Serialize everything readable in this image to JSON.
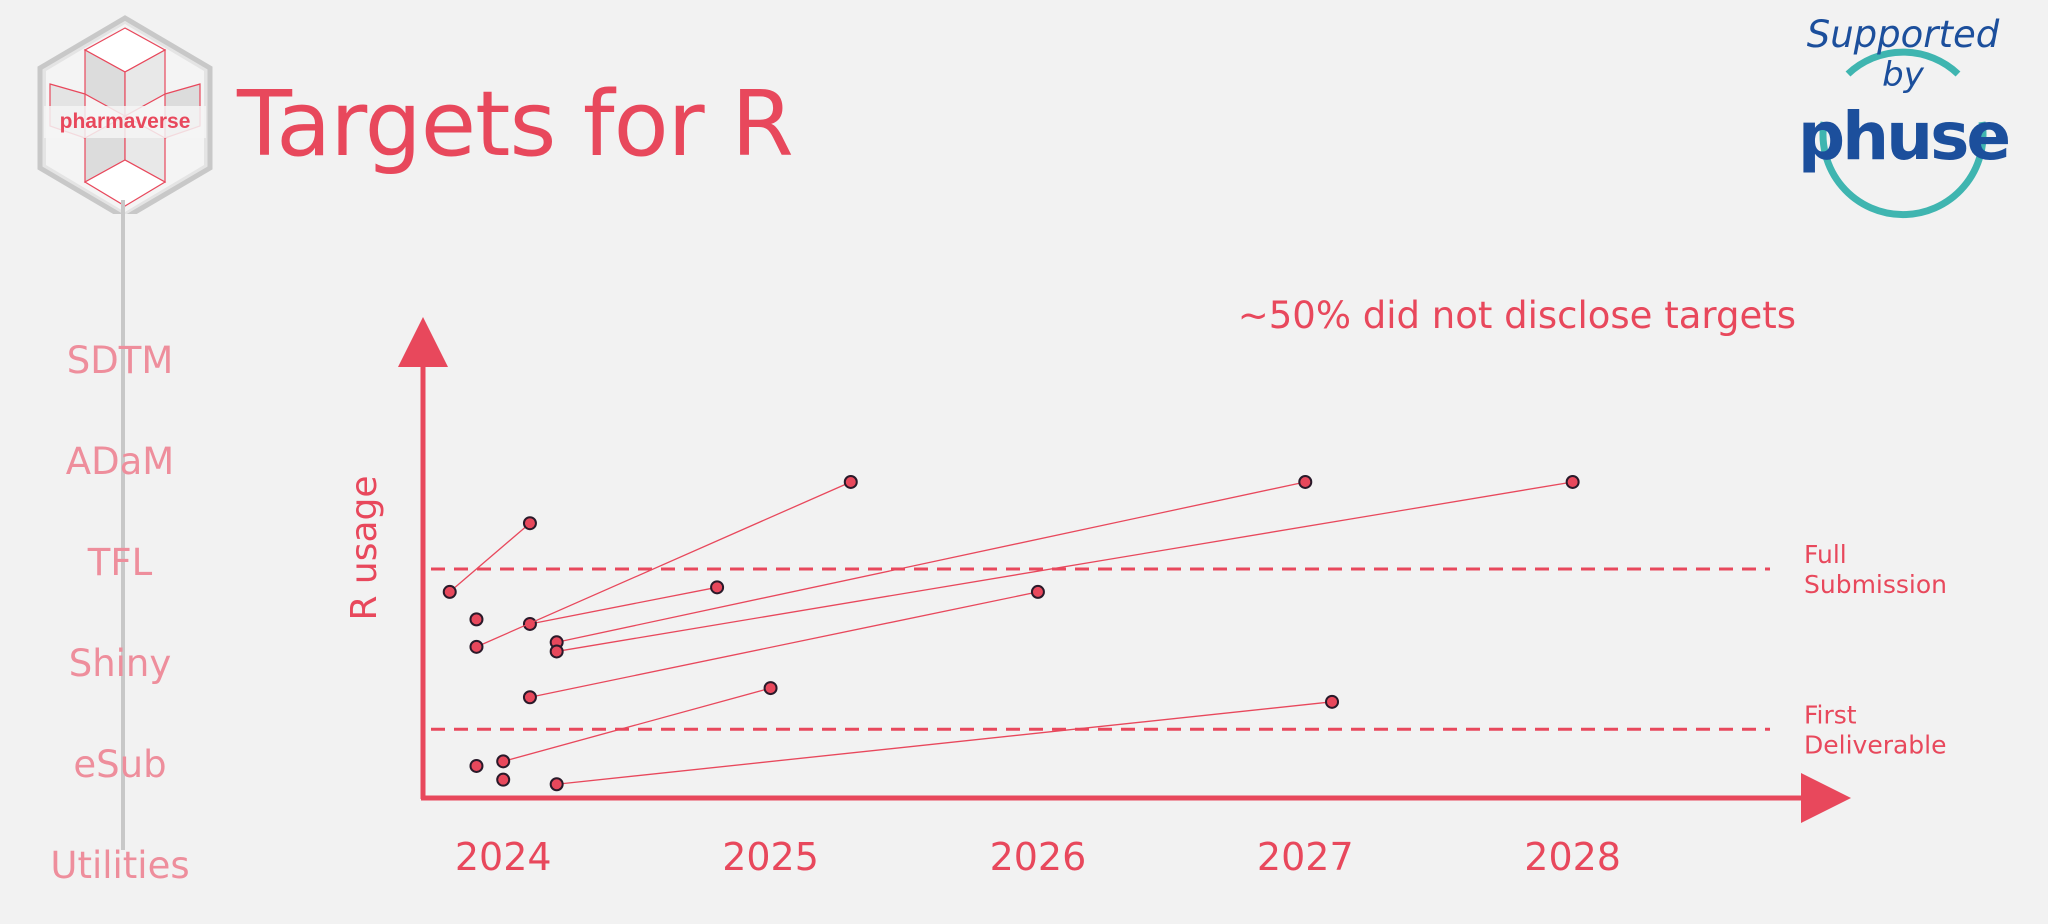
{
  "slide": {
    "title": "Targets for R",
    "logo_text": "pharmaverse",
    "sidebar": [
      "SDTM",
      "ADaM",
      "TFL",
      "Shiny",
      "eSub",
      "Utilities"
    ],
    "badge": {
      "line1": "Supported",
      "line2": "by",
      "name": "phuse"
    }
  },
  "colors": {
    "accent": "#e8485c",
    "sidebar_text": "#ee8e9c",
    "badge_blue": "#1c4f9c",
    "badge_teal": "#3fb5b0",
    "dot_outline": "#2a1a2a"
  },
  "chart_data": {
    "type": "scatter",
    "title": "",
    "annotation": "~50% did not disclose targets",
    "xlabel": "",
    "ylabel": "R usage",
    "x_ticks": [
      "2024",
      "2025",
      "2026",
      "2027",
      "2028"
    ],
    "xlim": [
      2023.7,
      2029
    ],
    "ylim": [
      0,
      10
    ],
    "grid": false,
    "thresholds": [
      {
        "label_lines": [
          "Full",
          "Submission"
        ],
        "y": 5.0
      },
      {
        "label_lines": [
          "First",
          "Deliverable"
        ],
        "y": 1.5
      }
    ],
    "series": [
      {
        "points": [
          [
            2023.8,
            4.5
          ],
          [
            2024.1,
            6.0
          ]
        ]
      },
      {
        "points": [
          [
            2024.1,
            3.8
          ],
          [
            2024.8,
            4.6
          ]
        ]
      },
      {
        "points": [
          [
            2023.9,
            3.3
          ],
          [
            2025.3,
            6.9
          ]
        ]
      },
      {
        "points": [
          [
            2024.2,
            3.4
          ],
          [
            2027.0,
            6.9
          ]
        ]
      },
      {
        "points": [
          [
            2024.2,
            3.2
          ],
          [
            2028.0,
            6.9
          ]
        ]
      },
      {
        "points": [
          [
            2024.1,
            2.2
          ],
          [
            2026.0,
            4.5
          ]
        ]
      },
      {
        "points": [
          [
            2024.0,
            0.8
          ],
          [
            2025.0,
            2.4
          ]
        ]
      },
      {
        "points": [
          [
            2024.2,
            0.3
          ],
          [
            2027.1,
            2.1
          ]
        ]
      },
      {
        "points": [
          [
            2023.9,
            3.9
          ]
        ]
      },
      {
        "points": [
          [
            2023.9,
            0.7
          ]
        ]
      },
      {
        "points": [
          [
            2024.0,
            0.4
          ]
        ]
      }
    ]
  }
}
